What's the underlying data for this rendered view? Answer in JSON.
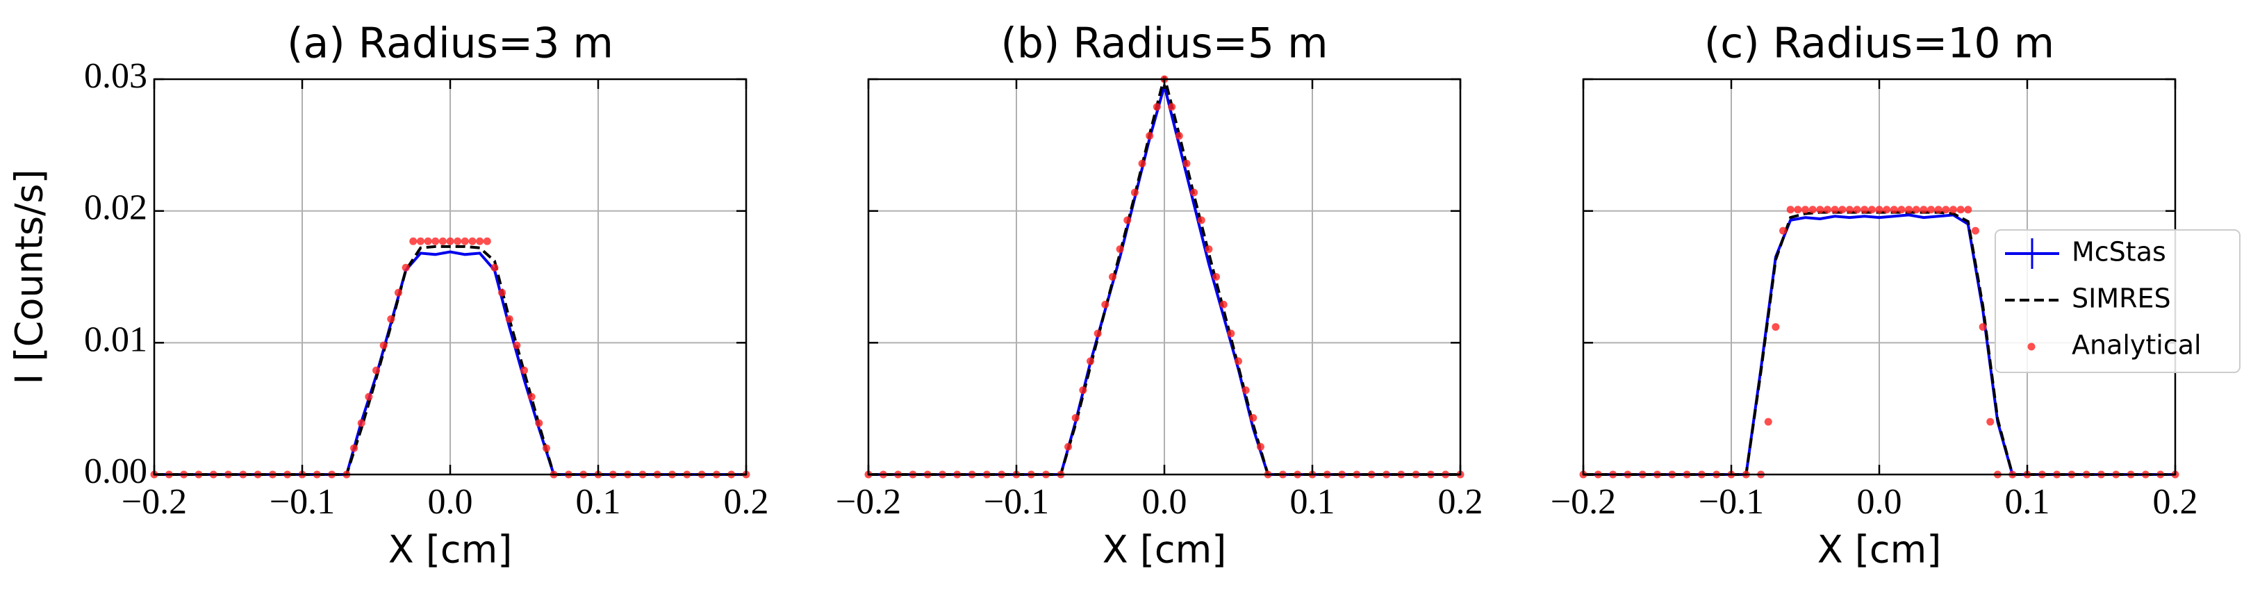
{
  "chart_data": [
    {
      "type": "line",
      "title": "(a) Radius=3 m",
      "xlabel": "X [cm]",
      "ylabel": "I [Counts/s]",
      "xlim": [
        -0.2,
        0.2
      ],
      "xticks": [
        {
          "value": -0.2,
          "label": "−0.2"
        },
        {
          "value": -0.1,
          "label": "−0.1"
        },
        {
          "value": 0,
          "label": "0.0"
        },
        0.1,
        0.2
      ],
      "ylim": [
        0,
        0.03
      ],
      "yticks": [
        {
          "value": 0,
          "label": "0.00"
        },
        {
          "value": 0.01,
          "label": "0.01"
        },
        {
          "value": 0.02,
          "label": "0.02"
        },
        {
          "value": 0.03,
          "label": "0.03"
        }
      ],
      "grid": true,
      "series": [
        {
          "name": "McStas",
          "color": "#0000ee",
          "linestyle": "solid",
          "x": [
            -0.2,
            -0.19,
            -0.18,
            -0.17,
            -0.16,
            -0.15,
            -0.14,
            -0.13,
            -0.12,
            -0.11,
            -0.1,
            -0.09,
            -0.08,
            -0.07,
            -0.06,
            -0.05,
            -0.04,
            -0.03,
            -0.02,
            -0.01,
            0,
            0.01,
            0.02,
            0.03,
            0.04,
            0.05,
            0.06,
            0.07,
            0.08,
            0.09,
            0.1,
            0.11,
            0.12,
            0.13,
            0.14,
            0.15,
            0.16,
            0.17,
            0.18,
            0.19,
            0.2
          ],
          "values": [
            0,
            0,
            0,
            0,
            0,
            0,
            0,
            0,
            0,
            0,
            0,
            0,
            0,
            0,
            0.004,
            0.0075,
            0.0115,
            0.0155,
            0.0168,
            0.0167,
            0.0169,
            0.0167,
            0.0168,
            0.0155,
            0.0112,
            0.0072,
            0.0035,
            0,
            0,
            0,
            0,
            0,
            0,
            0,
            0,
            0,
            0,
            0,
            0,
            0,
            0
          ]
        },
        {
          "name": "SIMRES",
          "color": "#000000",
          "linestyle": "dashed",
          "x": [
            -0.2,
            -0.19,
            -0.18,
            -0.17,
            -0.16,
            -0.15,
            -0.14,
            -0.13,
            -0.12,
            -0.11,
            -0.1,
            -0.09,
            -0.08,
            -0.07,
            -0.06,
            -0.05,
            -0.04,
            -0.03,
            -0.02,
            -0.01,
            0,
            0.01,
            0.02,
            0.03,
            0.04,
            0.05,
            0.06,
            0.07,
            0.08,
            0.09,
            0.1,
            0.11,
            0.12,
            0.13,
            0.14,
            0.15,
            0.16,
            0.17,
            0.18,
            0.19,
            0.2
          ],
          "values": [
            0,
            0,
            0,
            0,
            0,
            0,
            0,
            0,
            0,
            0,
            0,
            0,
            0,
            0,
            0.0035,
            0.0073,
            0.0113,
            0.0155,
            0.0172,
            0.0173,
            0.0173,
            0.0173,
            0.0172,
            0.0162,
            0.0118,
            0.0078,
            0.0038,
            0,
            0,
            0,
            0,
            0,
            0,
            0,
            0,
            0,
            0,
            0,
            0,
            0,
            0
          ]
        },
        {
          "name": "Analytical",
          "color": "#ff2222",
          "linestyle": "none",
          "x": [
            -0.2,
            -0.19,
            -0.18,
            -0.17,
            -0.16,
            -0.15,
            -0.14,
            -0.13,
            -0.12,
            -0.11,
            -0.1,
            -0.09,
            -0.08,
            -0.07,
            -0.065,
            -0.06,
            -0.055,
            -0.05,
            -0.045,
            -0.04,
            -0.035,
            -0.03,
            -0.025,
            -0.02,
            -0.015,
            -0.01,
            -0.005,
            0,
            0.005,
            0.01,
            0.015,
            0.02,
            0.025,
            0.03,
            0.035,
            0.04,
            0.045,
            0.05,
            0.055,
            0.06,
            0.065,
            0.07,
            0.08,
            0.09,
            0.1,
            0.11,
            0.12,
            0.13,
            0.14,
            0.15,
            0.16,
            0.17,
            0.18,
            0.19,
            0.2
          ],
          "values": [
            0,
            0,
            0,
            0,
            0,
            0,
            0,
            0,
            0,
            0,
            0,
            0,
            0,
            0,
            0.002,
            0.0039,
            0.0059,
            0.0079,
            0.0098,
            0.0118,
            0.0138,
            0.0157,
            0.0177,
            0.0177,
            0.0177,
            0.0177,
            0.0177,
            0.0177,
            0.0177,
            0.0177,
            0.0177,
            0.0177,
            0.0177,
            0.0157,
            0.0138,
            0.0118,
            0.0098,
            0.0079,
            0.0059,
            0.0039,
            0.002,
            0,
            0,
            0,
            0,
            0,
            0,
            0,
            0,
            0,
            0,
            0,
            0,
            0,
            0
          ]
        }
      ]
    },
    {
      "type": "line",
      "title": "(b) Radius=5 m",
      "xlabel": "X [cm]",
      "sharey": true,
      "xlim": [
        -0.2,
        0.2
      ],
      "xticks": [
        {
          "value": -0.2,
          "label": "−0.2"
        },
        {
          "value": -0.1,
          "label": "−0.1"
        },
        {
          "value": 0,
          "label": "0.0"
        },
        0.1,
        0.2
      ],
      "ylim": [
        0,
        0.03
      ],
      "grid": true,
      "series": [
        {
          "name": "McStas",
          "color": "#0000ee",
          "linestyle": "solid",
          "x": [
            -0.2,
            -0.19,
            -0.18,
            -0.17,
            -0.16,
            -0.15,
            -0.14,
            -0.13,
            -0.12,
            -0.11,
            -0.1,
            -0.09,
            -0.08,
            -0.07,
            -0.06,
            -0.05,
            -0.04,
            -0.03,
            -0.02,
            -0.01,
            0,
            0.01,
            0.02,
            0.03,
            0.04,
            0.05,
            0.06,
            0.07,
            0.08,
            0.09,
            0.1,
            0.11,
            0.12,
            0.13,
            0.14,
            0.15,
            0.16,
            0.17,
            0.18,
            0.19,
            0.2
          ],
          "values": [
            0,
            0,
            0,
            0,
            0,
            0,
            0,
            0,
            0,
            0,
            0,
            0,
            0,
            0,
            0.004,
            0.0085,
            0.0125,
            0.0165,
            0.021,
            0.0255,
            0.0295,
            0.025,
            0.0205,
            0.016,
            0.012,
            0.008,
            0.0035,
            0,
            0,
            0,
            0,
            0,
            0,
            0,
            0,
            0,
            0,
            0,
            0,
            0,
            0
          ]
        },
        {
          "name": "SIMRES",
          "color": "#000000",
          "linestyle": "dashed",
          "x": [
            -0.2,
            -0.19,
            -0.18,
            -0.17,
            -0.16,
            -0.15,
            -0.14,
            -0.13,
            -0.12,
            -0.11,
            -0.1,
            -0.09,
            -0.08,
            -0.07,
            -0.06,
            -0.05,
            -0.04,
            -0.03,
            -0.02,
            -0.01,
            0,
            0.01,
            0.02,
            0.03,
            0.04,
            0.05,
            0.06,
            0.07,
            0.08,
            0.09,
            0.1,
            0.11,
            0.12,
            0.13,
            0.14,
            0.15,
            0.16,
            0.17,
            0.18,
            0.19,
            0.2
          ],
          "values": [
            0,
            0,
            0,
            0,
            0,
            0,
            0,
            0,
            0,
            0,
            0,
            0,
            0,
            0,
            0.0038,
            0.0082,
            0.0125,
            0.0168,
            0.0212,
            0.0258,
            0.0302,
            0.0258,
            0.0212,
            0.0168,
            0.0125,
            0.0082,
            0.0038,
            0,
            0,
            0,
            0,
            0,
            0,
            0,
            0,
            0,
            0,
            0,
            0,
            0,
            0
          ]
        },
        {
          "name": "Analytical",
          "color": "#ff2222",
          "linestyle": "none",
          "x": [
            -0.2,
            -0.19,
            -0.18,
            -0.17,
            -0.16,
            -0.15,
            -0.14,
            -0.13,
            -0.12,
            -0.11,
            -0.1,
            -0.09,
            -0.08,
            -0.07,
            -0.065,
            -0.06,
            -0.055,
            -0.05,
            -0.045,
            -0.04,
            -0.035,
            -0.03,
            -0.025,
            -0.02,
            -0.015,
            -0.01,
            -0.005,
            0,
            0.005,
            0.01,
            0.015,
            0.02,
            0.025,
            0.03,
            0.035,
            0.04,
            0.045,
            0.05,
            0.055,
            0.06,
            0.065,
            0.07,
            0.08,
            0.09,
            0.1,
            0.11,
            0.12,
            0.13,
            0.14,
            0.15,
            0.16,
            0.17,
            0.18,
            0.19,
            0.2
          ],
          "values": [
            0,
            0,
            0,
            0,
            0,
            0,
            0,
            0,
            0,
            0,
            0,
            0,
            0,
            0,
            0.0021,
            0.0043,
            0.0064,
            0.0086,
            0.0107,
            0.0129,
            0.015,
            0.0171,
            0.0193,
            0.0214,
            0.0236,
            0.0257,
            0.0279,
            0.03,
            0.0279,
            0.0257,
            0.0236,
            0.0214,
            0.0193,
            0.0171,
            0.015,
            0.0129,
            0.0107,
            0.0086,
            0.0064,
            0.0043,
            0.0021,
            0,
            0,
            0,
            0,
            0,
            0,
            0,
            0,
            0,
            0,
            0,
            0,
            0,
            0
          ]
        }
      ]
    },
    {
      "type": "line",
      "title": "(c) Radius=10 m",
      "xlabel": "X [cm]",
      "sharey": true,
      "legend": "right",
      "xlim": [
        -0.2,
        0.2
      ],
      "xticks": [
        {
          "value": -0.2,
          "label": "−0.2"
        },
        {
          "value": -0.1,
          "label": "−0.1"
        },
        {
          "value": 0,
          "label": "0.0"
        },
        0.1,
        0.2
      ],
      "ylim": [
        0,
        0.03
      ],
      "grid": true,
      "series": [
        {
          "name": "McStas",
          "color": "#0000ee",
          "linestyle": "solid",
          "x": [
            -0.2,
            -0.19,
            -0.18,
            -0.17,
            -0.16,
            -0.15,
            -0.14,
            -0.13,
            -0.12,
            -0.11,
            -0.1,
            -0.09,
            -0.08,
            -0.07,
            -0.06,
            -0.05,
            -0.04,
            -0.03,
            -0.02,
            -0.01,
            0,
            0.01,
            0.02,
            0.03,
            0.04,
            0.05,
            0.06,
            0.07,
            0.08,
            0.09,
            0.1,
            0.11,
            0.12,
            0.13,
            0.14,
            0.15,
            0.16,
            0.17,
            0.18,
            0.19,
            0.2
          ],
          "values": [
            0,
            0,
            0,
            0,
            0,
            0,
            0,
            0,
            0,
            0,
            0,
            0,
            0.008,
            0.0165,
            0.0193,
            0.0195,
            0.0194,
            0.0196,
            0.0195,
            0.0196,
            0.0195,
            0.0196,
            0.0197,
            0.0195,
            0.0196,
            0.0197,
            0.019,
            0.0125,
            0.004,
            0,
            0,
            0,
            0,
            0,
            0,
            0,
            0,
            0,
            0,
            0,
            0
          ]
        },
        {
          "name": "SIMRES",
          "color": "#000000",
          "linestyle": "dashed",
          "x": [
            -0.2,
            -0.19,
            -0.18,
            -0.17,
            -0.16,
            -0.15,
            -0.14,
            -0.13,
            -0.12,
            -0.11,
            -0.1,
            -0.09,
            -0.08,
            -0.07,
            -0.06,
            -0.05,
            -0.04,
            -0.03,
            -0.02,
            -0.01,
            0,
            0.01,
            0.02,
            0.03,
            0.04,
            0.05,
            0.06,
            0.07,
            0.08,
            0.09,
            0.1,
            0.11,
            0.12,
            0.13,
            0.14,
            0.15,
            0.16,
            0.17,
            0.18,
            0.19,
            0.2
          ],
          "values": [
            0,
            0,
            0,
            0,
            0,
            0,
            0,
            0,
            0,
            0,
            0,
            0,
            0.0078,
            0.0163,
            0.0195,
            0.0198,
            0.0199,
            0.0199,
            0.0199,
            0.0199,
            0.0199,
            0.0199,
            0.0199,
            0.0199,
            0.0199,
            0.0198,
            0.0192,
            0.0128,
            0.0042,
            0,
            0,
            0,
            0,
            0,
            0,
            0,
            0,
            0,
            0,
            0,
            0
          ]
        },
        {
          "name": "Analytical",
          "color": "#ff2222",
          "linestyle": "none",
          "x": [
            -0.2,
            -0.19,
            -0.18,
            -0.17,
            -0.16,
            -0.15,
            -0.14,
            -0.13,
            -0.12,
            -0.11,
            -0.1,
            -0.09,
            -0.08,
            -0.075,
            -0.07,
            -0.065,
            -0.06,
            -0.055,
            -0.05,
            -0.045,
            -0.04,
            -0.035,
            -0.03,
            -0.025,
            -0.02,
            -0.015,
            -0.01,
            -0.005,
            0,
            0.005,
            0.01,
            0.015,
            0.02,
            0.025,
            0.03,
            0.035,
            0.04,
            0.045,
            0.05,
            0.055,
            0.06,
            0.065,
            0.07,
            0.075,
            0.08,
            0.09,
            0.1,
            0.11,
            0.12,
            0.13,
            0.14,
            0.15,
            0.16,
            0.17,
            0.18,
            0.19,
            0.2
          ],
          "values": [
            0,
            0,
            0,
            0,
            0,
            0,
            0,
            0,
            0,
            0,
            0,
            0,
            0,
            0.004,
            0.0112,
            0.0185,
            0.0201,
            0.0201,
            0.0201,
            0.0201,
            0.0201,
            0.0201,
            0.0201,
            0.0201,
            0.0201,
            0.0201,
            0.0201,
            0.0201,
            0.0201,
            0.0201,
            0.0201,
            0.0201,
            0.0201,
            0.0201,
            0.0201,
            0.0201,
            0.0201,
            0.0201,
            0.0201,
            0.0201,
            0.0201,
            0.0185,
            0.0112,
            0.004,
            0,
            0,
            0,
            0,
            0,
            0,
            0,
            0,
            0,
            0,
            0,
            0,
            0
          ]
        }
      ]
    }
  ]
}
